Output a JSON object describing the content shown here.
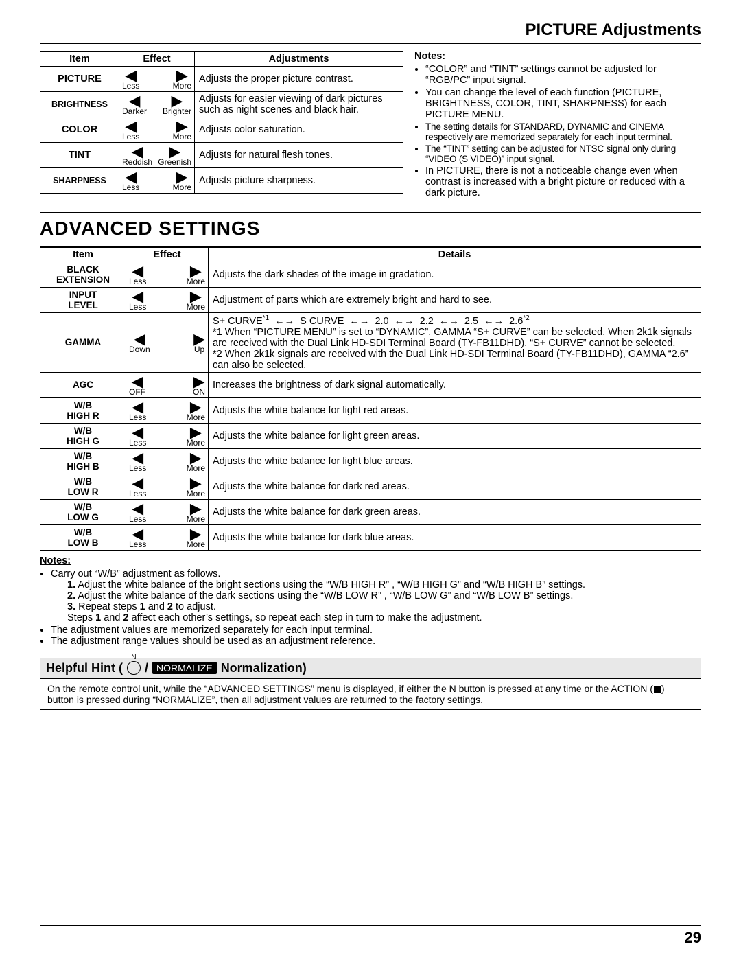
{
  "header": {
    "title": "PICTURE Adjustments"
  },
  "table1": {
    "headers": {
      "item": "Item",
      "effect": "Effect",
      "adj": "Adjustments"
    },
    "rows": [
      {
        "item": "PICTURE",
        "left": "Less",
        "right": "More",
        "desc": "Adjusts the proper picture contrast."
      },
      {
        "item": "BRIGHTNESS",
        "left": "Darker",
        "right": "Brighter",
        "desc": "Adjusts for easier viewing of dark pictures such as night scenes and black hair."
      },
      {
        "item": "COLOR",
        "left": "Less",
        "right": "More",
        "desc": "Adjusts color saturation."
      },
      {
        "item": "TINT",
        "left": "Reddish",
        "right": "Greenish",
        "desc": "Adjusts for natural flesh tones."
      },
      {
        "item": "SHARPNESS",
        "left": "Less",
        "right": "More",
        "desc": "Adjusts picture sharpness."
      }
    ]
  },
  "notes1": {
    "title": "Notes:",
    "items": [
      "“COLOR” and “TINT” settings cannot be adjusted for “RGB/PC” input signal.",
      "You can change the level of each function (PICTURE, BRIGHTNESS, COLOR, TINT, SHARPNESS) for each PICTURE MENU.",
      "The setting details for STANDARD, DYNAMIC and CINEMA respectively are memorized separately for each input terminal.",
      "The “TINT” setting can be adjusted for NTSC signal only during “VIDEO (S VIDEO)” input signal.",
      "In PICTURE, there is not a noticeable change even when contrast is increased with a bright picture or reduced with a dark picture."
    ]
  },
  "section2": {
    "title": "ADVANCED SETTINGS"
  },
  "table2": {
    "headers": {
      "item": "Item",
      "effect": "Effect",
      "details": "Details"
    },
    "rows": [
      {
        "item": "BLACK EXTENSION",
        "left": "Less",
        "right": "More",
        "desc": "Adjusts the dark shades of the image in gradation."
      },
      {
        "item": "INPUT LEVEL",
        "left": "Less",
        "right": "More",
        "desc": "Adjustment of parts which are extremely bright and hard to see."
      },
      {
        "item": "GAMMA",
        "left": "Down",
        "right": "Up",
        "gamma_seq": [
          "S+ CURVE*1",
          "S CURVE",
          "2.0",
          "2.2",
          "2.5",
          "2.6*2"
        ],
        "note1": "*1 When “PICTURE MENU” is set to “DYNAMIC”, GAMMA “S+ CURVE” can be selected. When 2k1k signals are received with the Dual Link HD-SDI Terminal Board (TY-FB11DHD), “S+ CURVE” cannot be selected.",
        "note2": "*2 When 2k1k signals are received with the Dual Link HD-SDI Terminal Board (TY-FB11DHD), GAMMA “2.6” can also be selected."
      },
      {
        "item": "AGC",
        "left": "OFF",
        "right": "ON",
        "desc": "Increases the brightness of dark signal automatically."
      },
      {
        "item": "W/B HIGH R",
        "left": "Less",
        "right": "More",
        "desc": "Adjusts the white balance for light red areas."
      },
      {
        "item": "W/B HIGH G",
        "left": "Less",
        "right": "More",
        "desc": "Adjusts the white balance for light green areas."
      },
      {
        "item": "W/B HIGH B",
        "left": "Less",
        "right": "More",
        "desc": "Adjusts the white balance for light blue areas."
      },
      {
        "item": "W/B LOW R",
        "left": "Less",
        "right": "More",
        "desc": "Adjusts the white balance for dark red areas."
      },
      {
        "item": "W/B LOW G",
        "left": "Less",
        "right": "More",
        "desc": "Adjusts the white balance for dark green areas."
      },
      {
        "item": "W/B LOW B",
        "left": "Less",
        "right": "More",
        "desc": "Adjusts the white balance for dark blue areas."
      }
    ]
  },
  "notes2": {
    "title": "Notes:",
    "bullet1": "Carry out “W/B” adjustment as follows.",
    "steps": [
      {
        "n": "1.",
        "t": "Adjust the white balance of the bright sections using the “W/B HIGH R” , “W/B HIGH G” and “W/B HIGH B” settings."
      },
      {
        "n": "2.",
        "t": "Adjust the white balance of the dark sections using the “W/B LOW R” , “W/B LOW G” and “W/B LOW B” settings."
      },
      {
        "n": "3.",
        "t": "Repeat steps 1 and 2 to adjust."
      }
    ],
    "stepsnote": "Steps 1 and 2 affect each other’s settings, so repeat each step in turn to make the adjustment.",
    "bullet2": "The adjustment values are memorized separately for each input terminal.",
    "bullet3": "The adjustment range values should be used as an adjustment reference."
  },
  "hint": {
    "title_pre": "Helpful Hint (",
    "normalize_btn": "NORMALIZE",
    "title_post": " Normalization)",
    "body": "On the remote control unit, while the “ADVANCED SETTINGS” menu is displayed, if either the N button is pressed at any time or the ACTION (■) button is pressed during “NORMALIZE”, then all adjustment values are returned to the factory settings."
  },
  "page_number": "29"
}
